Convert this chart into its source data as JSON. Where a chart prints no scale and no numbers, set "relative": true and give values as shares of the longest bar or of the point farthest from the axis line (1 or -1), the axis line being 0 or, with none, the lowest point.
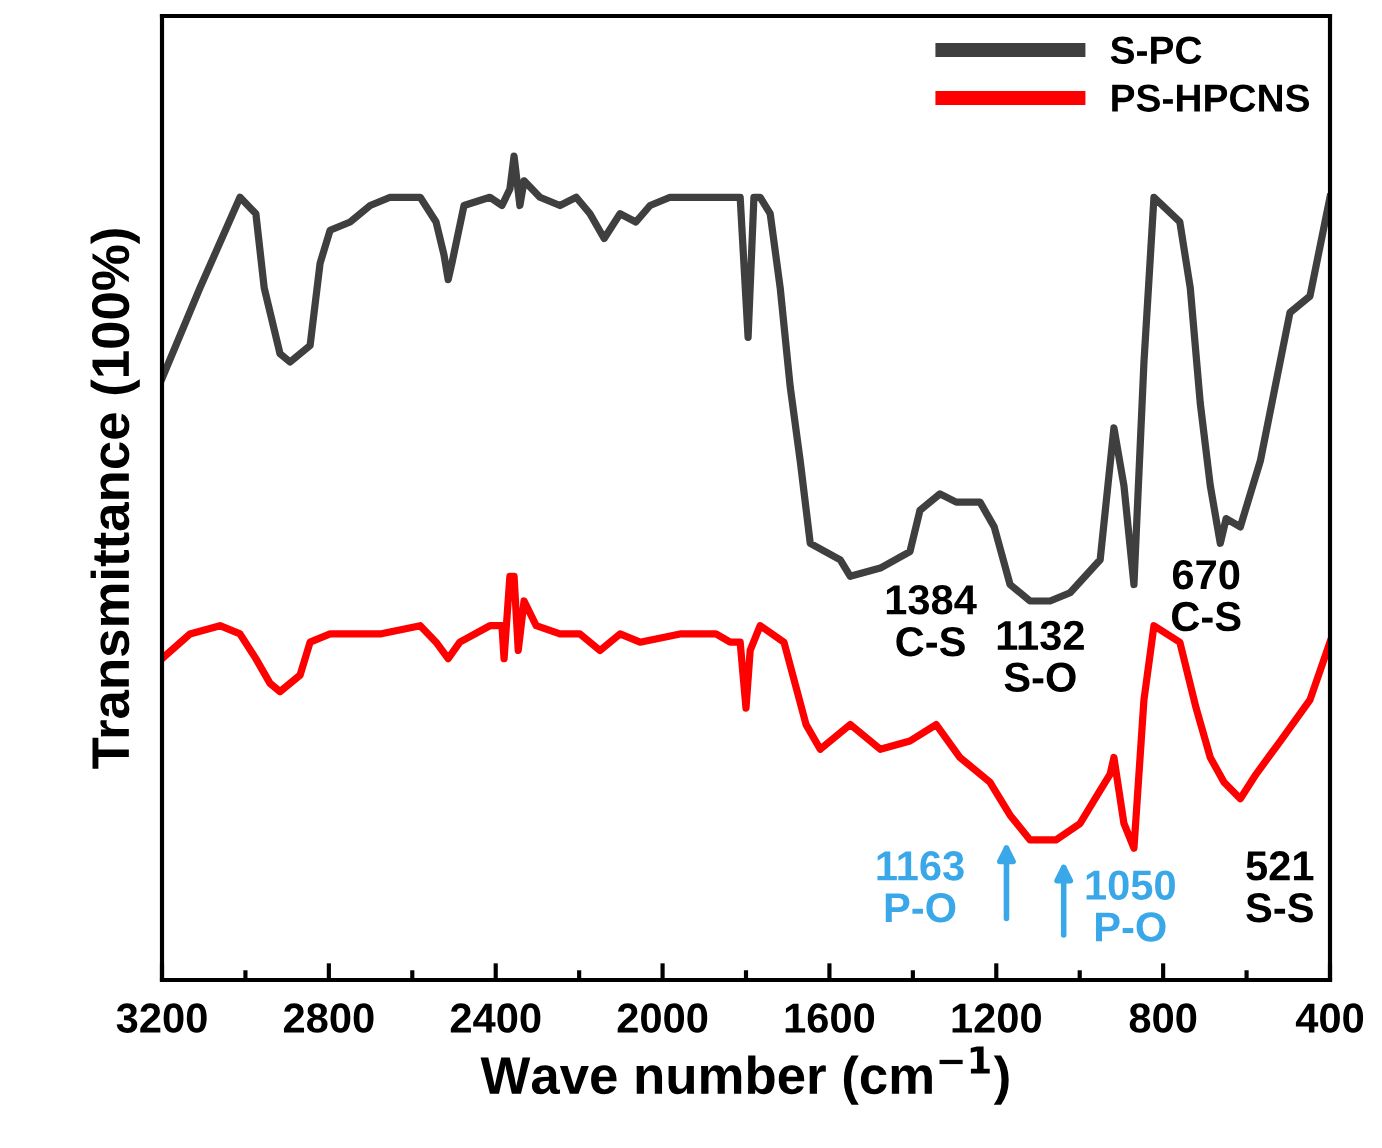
{
  "chart_data": {
    "type": "line",
    "relative": true,
    "xlabel": "Wave number (cm$^{−1}$)",
    "ylabel": "Transmittance (100%)",
    "xlim": [
      3200,
      400
    ],
    "xticks": [
      3200,
      {
        "value": 3000,
        "label": null
      },
      2800,
      {
        "value": 2600,
        "label": null
      },
      2400,
      {
        "value": 2200,
        "label": null
      },
      2000,
      {
        "value": 1800,
        "label": null
      },
      1600,
      {
        "value": 1400,
        "label": null
      },
      1200,
      {
        "value": 1000,
        "label": null
      },
      800,
      {
        "value": 600,
        "label": null
      },
      400
    ],
    "legend": "top right",
    "grid": false,
    "series": [
      {
        "name": "S-PC",
        "color": "#3f3f3f",
        "x": [
          3200,
          3109,
          3013,
          2975,
          2955,
          2917,
          2893,
          2869,
          2845,
          2821,
          2797,
          2749,
          2701,
          2653,
          2581,
          2543,
          2524,
          2514,
          2505,
          2476,
          2414,
          2385,
          2366,
          2356,
          2342,
          2332,
          2294,
          2246,
          2207,
          2174,
          2140,
          2102,
          2064,
          2030,
          1982,
          1862,
          1814,
          1795,
          1781,
          1766,
          1742,
          1718,
          1694,
          1670,
          1646,
          1574,
          1550,
          1478,
          1407,
          1383,
          1335,
          1296,
          1239,
          1205,
          1167,
          1119,
          1071,
          1023,
          951,
          918,
          894,
          870,
          846,
          822,
          760,
          735,
          711,
          687,
          663,
          649,
          615,
          567,
          496,
          448,
          424,
          400
        ],
        "values": [
          0.73,
          0.84,
          0.95,
          0.93,
          0.84,
          0.76,
          0.75,
          0.76,
          0.77,
          0.87,
          0.91,
          0.92,
          0.94,
          0.95,
          0.95,
          0.92,
          0.88,
          0.85,
          0.87,
          0.94,
          0.95,
          0.94,
          0.96,
          1.0,
          0.94,
          0.97,
          0.95,
          0.94,
          0.95,
          0.93,
          0.9,
          0.93,
          0.92,
          0.94,
          0.95,
          0.95,
          0.95,
          0.78,
          0.95,
          0.95,
          0.93,
          0.84,
          0.72,
          0.63,
          0.53,
          0.51,
          0.49,
          0.5,
          0.52,
          0.57,
          0.59,
          0.58,
          0.58,
          0.55,
          0.48,
          0.46,
          0.46,
          0.47,
          0.51,
          0.67,
          0.6,
          0.48,
          0.75,
          0.95,
          0.92,
          0.84,
          0.7,
          0.6,
          0.53,
          0.56,
          0.55,
          0.63,
          0.81,
          0.83,
          0.89,
          0.95
        ]
      },
      {
        "name": "PS-HPCNS",
        "color": "#ff0000",
        "x": [
          3200,
          3133,
          3061,
          3013,
          2975,
          2941,
          2917,
          2869,
          2845,
          2797,
          2677,
          2581,
          2543,
          2514,
          2486,
          2414,
          2385,
          2380,
          2366,
          2356,
          2346,
          2332,
          2303,
          2246,
          2198,
          2150,
          2102,
          2054,
          1958,
          1872,
          1838,
          1814,
          1800,
          1790,
          1766,
          1709,
          1656,
          1622,
          1550,
          1478,
          1407,
          1344,
          1287,
          1215,
          1167,
          1119,
          1057,
          999,
          951,
          927,
          918,
          894,
          870,
          846,
          822,
          760,
          721,
          687,
          654,
          615,
          577,
          519,
          448,
          400
        ],
        "values": [
          0.39,
          0.42,
          0.43,
          0.42,
          0.39,
          0.36,
          0.35,
          0.37,
          0.41,
          0.42,
          0.42,
          0.43,
          0.41,
          0.39,
          0.41,
          0.43,
          0.43,
          0.39,
          0.49,
          0.49,
          0.4,
          0.46,
          0.43,
          0.42,
          0.42,
          0.4,
          0.42,
          0.41,
          0.42,
          0.42,
          0.41,
          0.41,
          0.33,
          0.4,
          0.43,
          0.41,
          0.31,
          0.28,
          0.31,
          0.28,
          0.29,
          0.31,
          0.27,
          0.24,
          0.2,
          0.17,
          0.17,
          0.19,
          0.23,
          0.25,
          0.27,
          0.19,
          0.16,
          0.34,
          0.43,
          0.41,
          0.33,
          0.27,
          0.24,
          0.22,
          0.25,
          0.29,
          0.34,
          0.41
        ]
      }
    ],
    "annotations": [
      "1384\nC-S",
      "1132\nS-O",
      "670\nC-S",
      "521\nS-S",
      "1163\nP-O",
      "1050\nP-O"
    ]
  }
}
